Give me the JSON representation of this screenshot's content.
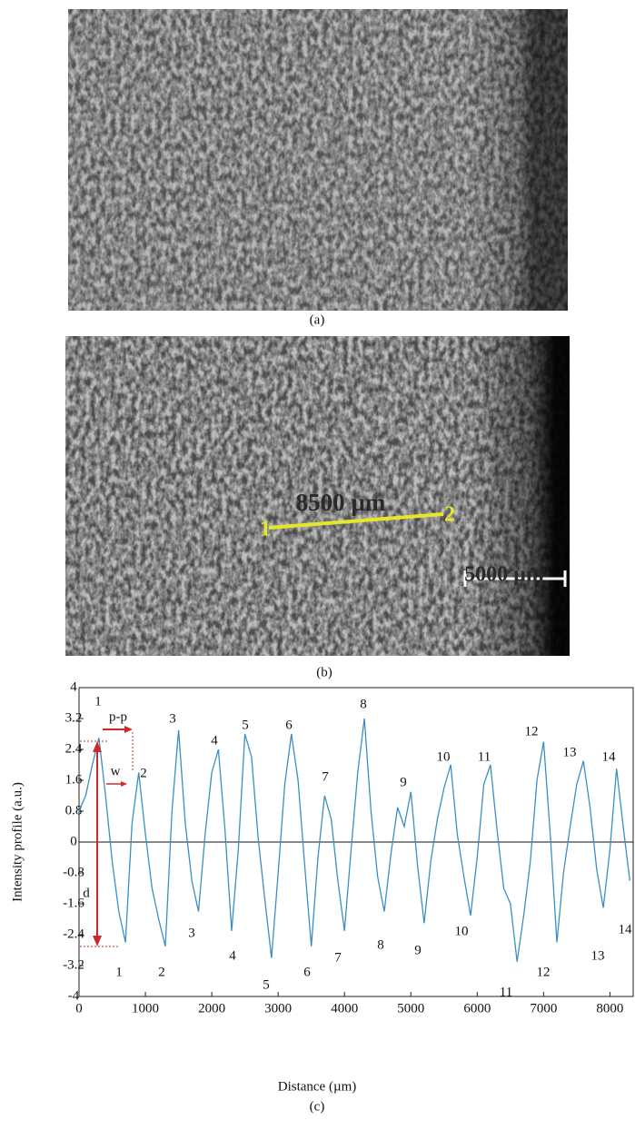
{
  "images": {
    "a": {
      "caption": "(a)"
    },
    "b": {
      "caption": "(b)",
      "measure_label": "8500 µm",
      "start_label": "1",
      "end_label": "2",
      "scale_label": "5000 µm"
    }
  },
  "chart_data": {
    "type": "line",
    "caption": "(c)",
    "x_label": "Distance (µm)",
    "y_label": "Intensity profile (a.u.)",
    "xlim": [
      0,
      8350
    ],
    "ylim": [
      -4,
      4
    ],
    "xticks": [
      0,
      1000,
      2000,
      3000,
      4000,
      5000,
      6000,
      7000,
      8000
    ],
    "yticks": [
      4,
      3.2,
      2.4,
      1.6,
      0.8,
      0,
      -0.8,
      -1.6,
      -2.4,
      -3.2,
      -4
    ],
    "x": [
      0,
      100,
      200,
      300,
      400,
      500,
      600,
      700,
      800,
      900,
      1000,
      1100,
      1200,
      1300,
      1400,
      1500,
      1600,
      1700,
      1800,
      1900,
      2000,
      2100,
      2200,
      2300,
      2400,
      2500,
      2600,
      2700,
      2800,
      2900,
      3000,
      3100,
      3200,
      3300,
      3400,
      3500,
      3600,
      3700,
      3800,
      3900,
      4000,
      4100,
      4200,
      4300,
      4400,
      4500,
      4600,
      4700,
      4800,
      4900,
      5000,
      5100,
      5200,
      5300,
      5400,
      5500,
      5600,
      5700,
      5800,
      5900,
      6000,
      6100,
      6200,
      6300,
      6400,
      6500,
      6600,
      6700,
      6800,
      6900,
      7000,
      7100,
      7200,
      7300,
      7400,
      7500,
      7600,
      7700,
      7800,
      7900,
      8000,
      8100,
      8200,
      8300
    ],
    "series": [
      {
        "color": "#3b8ec4",
        "values": [
          0.8,
          1.2,
          2.0,
          2.7,
          1.2,
          -0.5,
          -1.8,
          -2.6,
          0.5,
          1.8,
          0.2,
          -1.2,
          -2.0,
          -2.7,
          0.8,
          2.9,
          0.5,
          -1.0,
          -1.8,
          0.2,
          1.8,
          2.4,
          0.3,
          -2.3,
          -0.2,
          2.8,
          2.2,
          0.1,
          -1.5,
          -3.0,
          -0.8,
          1.5,
          2.8,
          1.6,
          -0.6,
          -2.7,
          -0.4,
          1.2,
          0.6,
          -1.0,
          -2.3,
          -0.2,
          1.8,
          3.2,
          0.8,
          -0.9,
          -1.8,
          -0.3,
          0.9,
          0.4,
          1.3,
          -0.6,
          -2.1,
          -0.5,
          0.6,
          1.4,
          2.0,
          0.2,
          -0.9,
          -1.9,
          -0.4,
          1.5,
          2.0,
          0.3,
          -1.2,
          -1.6,
          -3.1,
          -1.9,
          -0.5,
          1.6,
          2.6,
          0.2,
          -2.6,
          -0.8,
          0.4,
          1.5,
          2.1,
          0.9,
          -0.7,
          -1.7,
          -0.2,
          1.9,
          0.4,
          -1.0
        ]
      }
    ],
    "peak_labels": [
      "1",
      "2",
      "3",
      "4",
      "5",
      "6",
      "7",
      "8",
      "9",
      "10",
      "11",
      "12",
      "13",
      "14"
    ],
    "valley_labels": [
      "1",
      "2",
      "3",
      "4",
      "5",
      "6",
      "7",
      "8",
      "9",
      "10",
      "11",
      "12",
      "13",
      "14"
    ],
    "annotations": [
      "p-p",
      "w",
      "d"
    ]
  }
}
